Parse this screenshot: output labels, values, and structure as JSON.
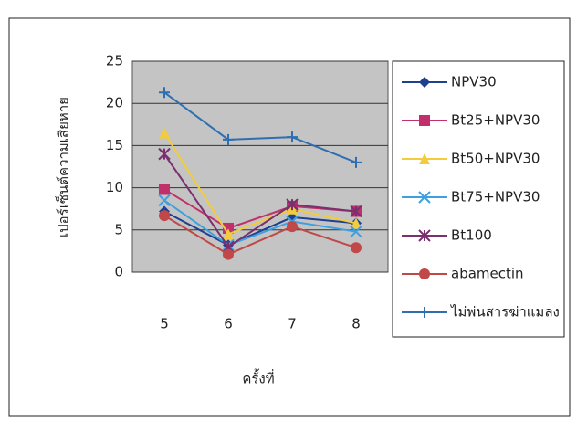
{
  "chart_data": {
    "type": "line",
    "y_label": "เปอร์เซ็นต์ความเสียหาย",
    "x_label": "ครั้งที่",
    "categories": [
      "5",
      "6",
      "7",
      "8"
    ],
    "ylim": [
      0,
      25
    ],
    "yticks": [
      0,
      5,
      10,
      15,
      20,
      25
    ],
    "grid": true,
    "legend": "right",
    "series": [
      {
        "name": "NPV30",
        "color": "#1f3f8f",
        "marker": "diamond",
        "values": [
          7.2,
          3.2,
          6.5,
          5.8
        ]
      },
      {
        "name": "Bt25+NPV30",
        "color": "#c0306a",
        "marker": "square",
        "values": [
          9.8,
          5.2,
          7.8,
          7.2
        ]
      },
      {
        "name": "Bt50+NPV30",
        "color": "#f2cc3a",
        "marker": "triangle",
        "values": [
          16.5,
          4.5,
          7.5,
          5.8
        ]
      },
      {
        "name": "Bt75+NPV30",
        "color": "#3fa0e0",
        "marker": "x",
        "values": [
          8.5,
          3.2,
          6.0,
          4.8
        ]
      },
      {
        "name": "Bt100",
        "color": "#7a2f6e",
        "marker": "star",
        "values": [
          14.0,
          3.0,
          8.0,
          7.2
        ]
      },
      {
        "name": "abamectin",
        "color": "#c04848",
        "marker": "circle",
        "values": [
          6.7,
          2.1,
          5.4,
          2.9
        ]
      },
      {
        "name": "ไม่พ่นสารฆ่าแมลง",
        "color": "#2f6fb0",
        "marker": "plus",
        "values": [
          21.3,
          15.7,
          16.0,
          13.0
        ]
      }
    ]
  }
}
